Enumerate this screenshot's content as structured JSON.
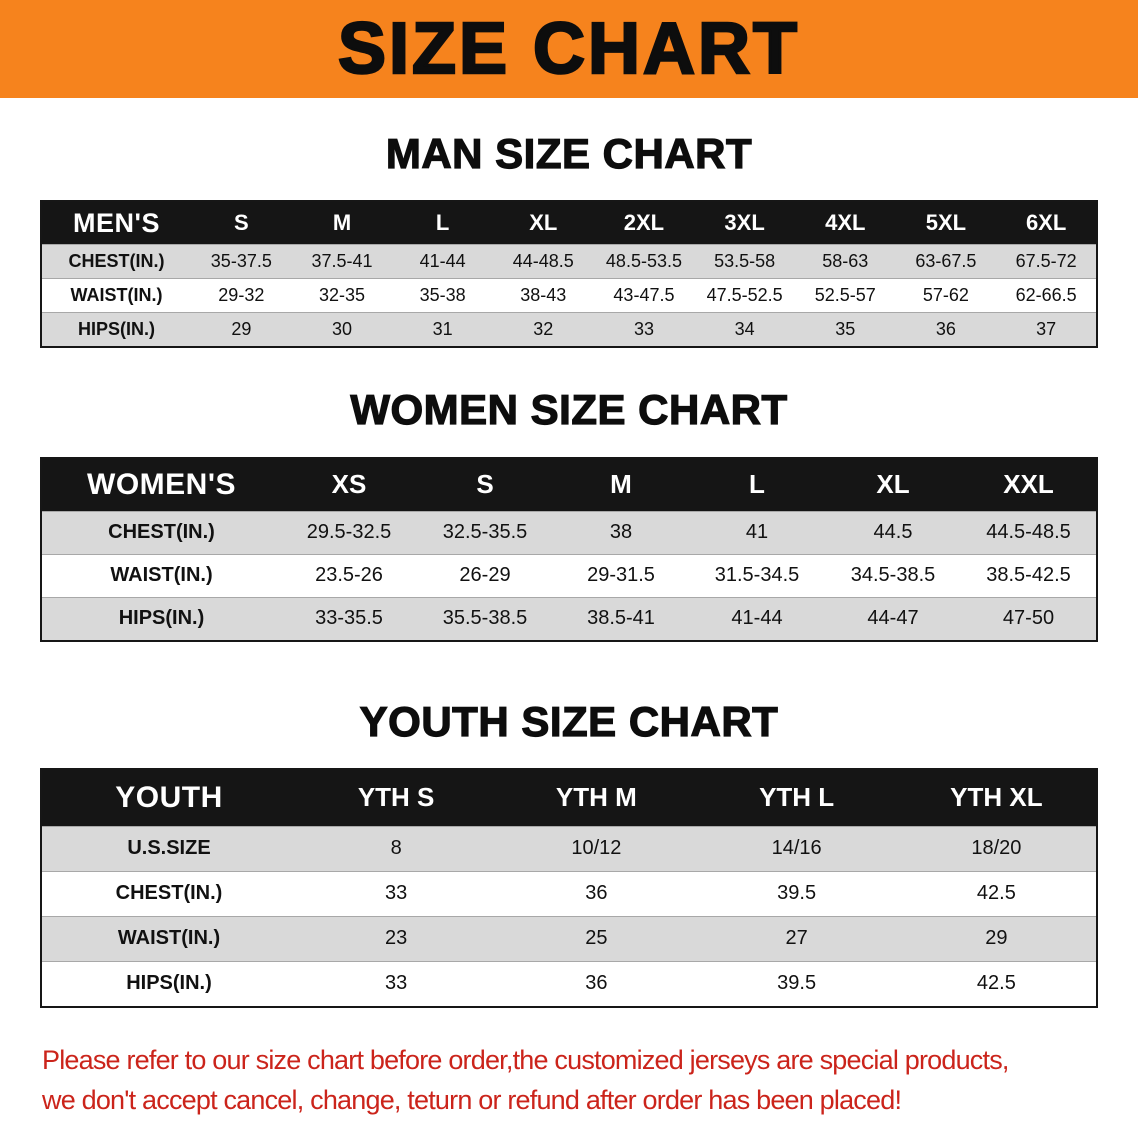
{
  "banner": {
    "title": "SIZE CHART",
    "bg_color": "#f6831d",
    "text_color": "#0d0d0d"
  },
  "chart_data": [
    {
      "type": "table",
      "title": "MAN SIZE CHART",
      "header_bg": "#151515",
      "stripe_color": "#d9d9d9",
      "columns": [
        "MEN'S",
        "S",
        "M",
        "L",
        "XL",
        "2XL",
        "3XL",
        "4XL",
        "5XL",
        "6XL"
      ],
      "rows": [
        [
          "CHEST(IN.)",
          "35-37.5",
          "37.5-41",
          "41-44",
          "44-48.5",
          "48.5-53.5",
          "53.5-58",
          "58-63",
          "63-67.5",
          "67.5-72"
        ],
        [
          "WAIST(IN.)",
          "29-32",
          "32-35",
          "35-38",
          "38-43",
          "43-47.5",
          "47.5-52.5",
          "52.5-57",
          "57-62",
          "62-66.5"
        ],
        [
          "HIPS(IN.)",
          "29",
          "30",
          "31",
          "32",
          "33",
          "34",
          "35",
          "36",
          "37"
        ]
      ]
    },
    {
      "type": "table",
      "title": "WOMEN SIZE CHART",
      "header_bg": "#151515",
      "stripe_color": "#d9d9d9",
      "columns": [
        "WOMEN'S",
        "XS",
        "S",
        "M",
        "L",
        "XL",
        "XXL"
      ],
      "rows": [
        [
          "CHEST(IN.)",
          "29.5-32.5",
          "32.5-35.5",
          "38",
          "41",
          "44.5",
          "44.5-48.5"
        ],
        [
          "WAIST(IN.)",
          "23.5-26",
          "26-29",
          "29-31.5",
          "31.5-34.5",
          "34.5-38.5",
          "38.5-42.5"
        ],
        [
          "HIPS(IN.)",
          "33-35.5",
          "35.5-38.5",
          "38.5-41",
          "41-44",
          "44-47",
          "47-50"
        ]
      ]
    },
    {
      "type": "table",
      "title": "YOUTH SIZE CHART",
      "header_bg": "#151515",
      "stripe_color": "#d9d9d9",
      "columns": [
        "YOUTH",
        "YTH S",
        "YTH M",
        "YTH L",
        "YTH XL"
      ],
      "rows": [
        [
          "U.S.SIZE",
          "8",
          "10/12",
          "14/16",
          "18/20"
        ],
        [
          "CHEST(IN.)",
          "33",
          "36",
          "39.5",
          "42.5"
        ],
        [
          "WAIST(IN.)",
          "23",
          "25",
          "27",
          "29"
        ],
        [
          "HIPS(IN.)",
          "33",
          "36",
          "39.5",
          "42.5"
        ]
      ]
    }
  ],
  "footer": {
    "line1": "Please refer to our size chart before order,the customized jerseys are special products,",
    "line2": "we don't accept cancel, change, teturn or refund after order has been placed!",
    "text_color": "#cb241b"
  }
}
